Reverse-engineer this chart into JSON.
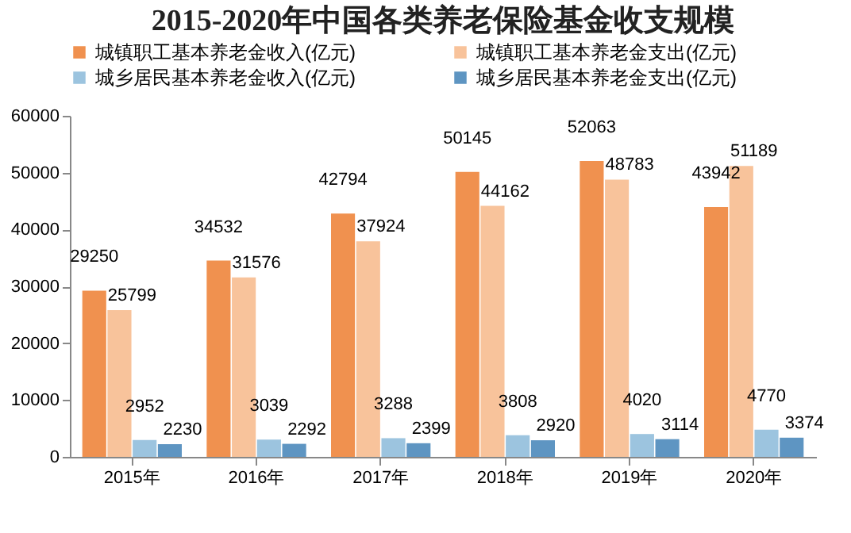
{
  "chart_data": {
    "type": "bar",
    "title": "2015-2020年中国各类养老保险基金收支规模",
    "categories": [
      "2015年",
      "2016年",
      "2017年",
      "2018年",
      "2019年",
      "2020年"
    ],
    "series": [
      {
        "name": "城镇职工基本养老金收入(亿元)",
        "color": "#f0914f",
        "values": [
          29250,
          34532,
          42794,
          50145,
          52063,
          43942
        ]
      },
      {
        "name": "城镇职工基本养老金支出(亿元)",
        "color": "#f8c39b",
        "values": [
          25799,
          31576,
          37924,
          44162,
          48783,
          51189
        ]
      },
      {
        "name": "城乡居民基本养老金收入(亿元)",
        "color": "#9cc4df",
        "values": [
          2952,
          3039,
          3288,
          3808,
          4020,
          4770
        ]
      },
      {
        "name": "城乡居民基本养老金支出(亿元)",
        "color": "#5e95c2",
        "values": [
          2230,
          2292,
          2399,
          2920,
          3114,
          3374
        ]
      }
    ],
    "ylim": [
      0,
      60000
    ],
    "yticks": [
      0,
      10000,
      20000,
      30000,
      40000,
      50000,
      60000
    ],
    "grid": false,
    "legend": "top",
    "data_labels": true
  }
}
